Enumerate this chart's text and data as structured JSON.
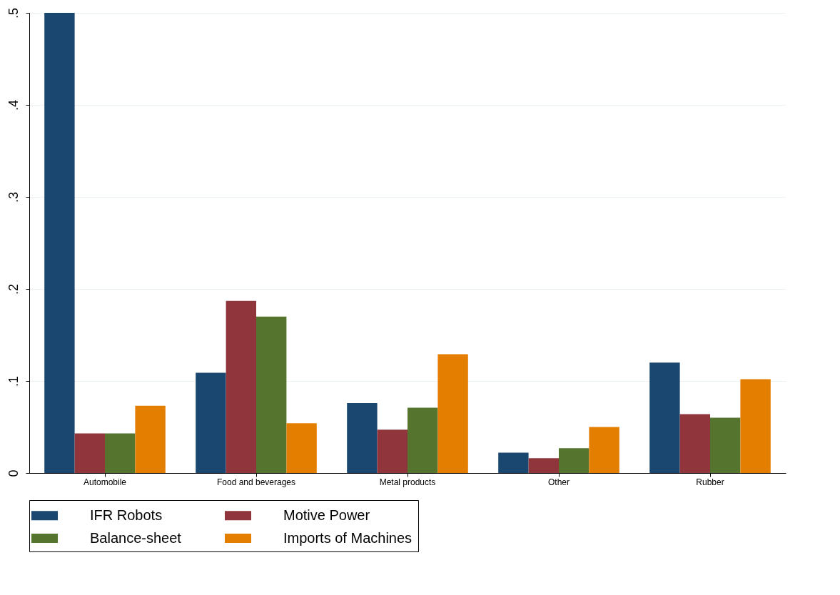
{
  "chart_data": {
    "type": "bar",
    "categories": [
      "Automobile",
      "Food and beverages",
      "Metal products",
      "Other",
      "Rubber"
    ],
    "series": [
      {
        "name": "IFR Robots",
        "color": "#1a476f",
        "values": [
          0.5,
          0.109,
          0.076,
          0.022,
          0.12
        ]
      },
      {
        "name": "Motive Power",
        "color": "#90353b",
        "values": [
          0.043,
          0.187,
          0.047,
          0.016,
          0.064
        ]
      },
      {
        "name": "Balance-sheet",
        "color": "#55752f",
        "values": [
          0.043,
          0.17,
          0.071,
          0.027,
          0.06
        ]
      },
      {
        "name": "Imports of Machines",
        "color": "#e37e00",
        "values": [
          0.073,
          0.054,
          0.129,
          0.05,
          0.102
        ]
      }
    ],
    "ylim": [
      0,
      0.5
    ],
    "yticks": [
      {
        "value": 0,
        "label": "0"
      },
      {
        "value": 0.1,
        "label": ".1"
      },
      {
        "value": 0.2,
        "label": ".2"
      },
      {
        "value": 0.3,
        "label": ".3"
      },
      {
        "value": 0.4,
        "label": ".4"
      },
      {
        "value": 0.5,
        "label": ".5"
      }
    ],
    "grid": "y",
    "legend": "bottom"
  }
}
